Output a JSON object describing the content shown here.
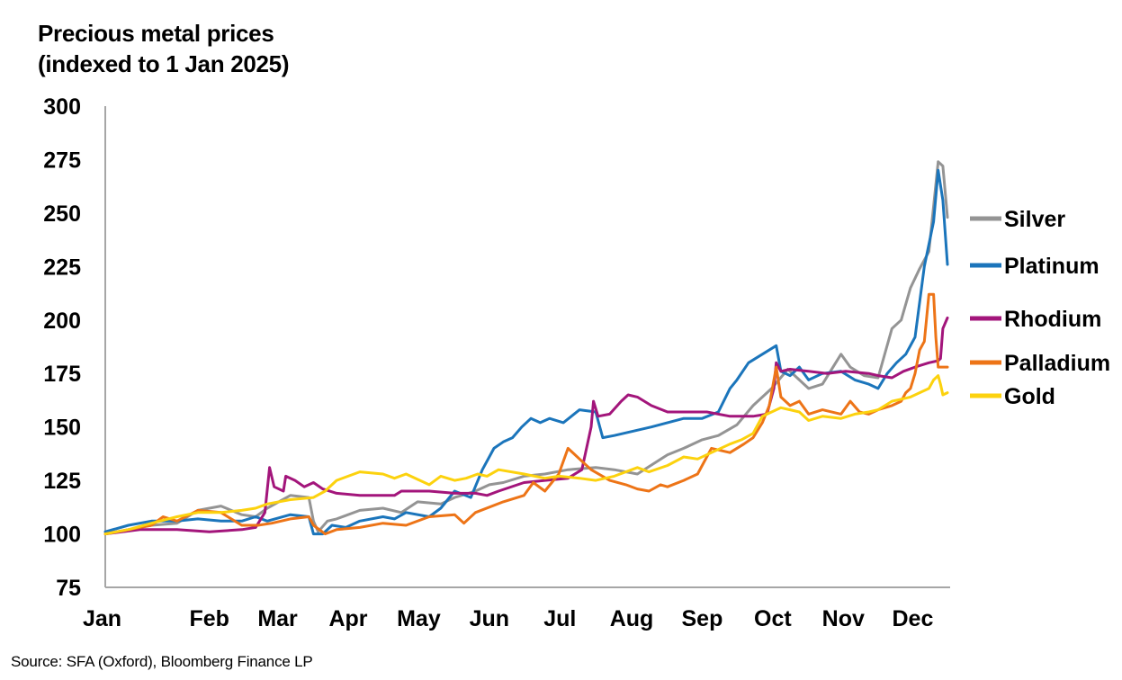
{
  "chart_data": {
    "type": "line",
    "title": "Precious metal prices",
    "subtitle": "(indexed to 1 Jan 2025)",
    "source": "Source: SFA (Oxford), Bloomberg Finance LP",
    "xlabel": "",
    "ylabel": "",
    "ylim": [
      75,
      300
    ],
    "yticks": [
      75,
      100,
      125,
      150,
      175,
      200,
      225,
      250,
      275,
      300
    ],
    "xlim": [
      0,
      364
    ],
    "x_ticks": [
      {
        "label": "Jan",
        "day": 0
      },
      {
        "label": "Feb",
        "day": 31
      },
      {
        "label": "Mar",
        "day": 59
      },
      {
        "label": "Apr",
        "day": 90
      },
      {
        "label": "May",
        "day": 120
      },
      {
        "label": "Jun",
        "day": 151
      },
      {
        "label": "Jul",
        "day": 181
      },
      {
        "label": "Aug",
        "day": 212
      },
      {
        "label": "Sep",
        "day": 243
      },
      {
        "label": "Oct",
        "day": 273
      },
      {
        "label": "Nov",
        "day": 304
      },
      {
        "label": "Dec",
        "day": 334
      }
    ],
    "grid": false,
    "legend": "right",
    "series": [
      {
        "name": "Silver",
        "color": "#949494",
        "points": [
          [
            0,
            100
          ],
          [
            10,
            102
          ],
          [
            20,
            104
          ],
          [
            31,
            105
          ],
          [
            40,
            111
          ],
          [
            50,
            113
          ],
          [
            59,
            109
          ],
          [
            65,
            108
          ],
          [
            70,
            112
          ],
          [
            80,
            118
          ],
          [
            88,
            117
          ],
          [
            90,
            106
          ],
          [
            92,
            101
          ],
          [
            96,
            106
          ],
          [
            100,
            107
          ],
          [
            110,
            111
          ],
          [
            120,
            112
          ],
          [
            128,
            110
          ],
          [
            135,
            115
          ],
          [
            145,
            114
          ],
          [
            151,
            117
          ],
          [
            160,
            120
          ],
          [
            166,
            123
          ],
          [
            172,
            124
          ],
          [
            181,
            127
          ],
          [
            190,
            128
          ],
          [
            200,
            130
          ],
          [
            212,
            131
          ],
          [
            220,
            130
          ],
          [
            230,
            128
          ],
          [
            243,
            137
          ],
          [
            250,
            140
          ],
          [
            258,
            144
          ],
          [
            265,
            146
          ],
          [
            273,
            151
          ],
          [
            280,
            160
          ],
          [
            288,
            168
          ],
          [
            295,
            177
          ],
          [
            304,
            168
          ],
          [
            310,
            170
          ],
          [
            318,
            184
          ],
          [
            322,
            178
          ],
          [
            328,
            174
          ],
          [
            334,
            173
          ],
          [
            340,
            196
          ],
          [
            344,
            200
          ],
          [
            348,
            215
          ],
          [
            352,
            224
          ],
          [
            356,
            232
          ],
          [
            360,
            274
          ],
          [
            362,
            272
          ],
          [
            364,
            248
          ]
        ]
      },
      {
        "name": "Platinum",
        "color": "#1b75bb",
        "points": [
          [
            0,
            101
          ],
          [
            10,
            104
          ],
          [
            20,
            106
          ],
          [
            31,
            106
          ],
          [
            40,
            107
          ],
          [
            50,
            106
          ],
          [
            59,
            106
          ],
          [
            65,
            108
          ],
          [
            70,
            106
          ],
          [
            80,
            109
          ],
          [
            88,
            108
          ],
          [
            90,
            100
          ],
          [
            94,
            100
          ],
          [
            98,
            104
          ],
          [
            104,
            103
          ],
          [
            110,
            106
          ],
          [
            120,
            108
          ],
          [
            125,
            107
          ],
          [
            130,
            110
          ],
          [
            140,
            108
          ],
          [
            145,
            112
          ],
          [
            151,
            120
          ],
          [
            158,
            117
          ],
          [
            163,
            130
          ],
          [
            168,
            140
          ],
          [
            172,
            143
          ],
          [
            176,
            145
          ],
          [
            180,
            150
          ],
          [
            184,
            154
          ],
          [
            188,
            152
          ],
          [
            192,
            154
          ],
          [
            198,
            152
          ],
          [
            205,
            158
          ],
          [
            212,
            157
          ],
          [
            215,
            145
          ],
          [
            220,
            146
          ],
          [
            228,
            148
          ],
          [
            236,
            150
          ],
          [
            243,
            152
          ],
          [
            250,
            154
          ],
          [
            258,
            154
          ],
          [
            265,
            157
          ],
          [
            270,
            168
          ],
          [
            273,
            172
          ],
          [
            278,
            180
          ],
          [
            284,
            184
          ],
          [
            290,
            188
          ],
          [
            292,
            176
          ],
          [
            296,
            174
          ],
          [
            300,
            178
          ],
          [
            304,
            172
          ],
          [
            310,
            175
          ],
          [
            318,
            176
          ],
          [
            324,
            172
          ],
          [
            330,
            170
          ],
          [
            334,
            168
          ],
          [
            338,
            175
          ],
          [
            342,
            180
          ],
          [
            346,
            184
          ],
          [
            350,
            192
          ],
          [
            354,
            225
          ],
          [
            358,
            246
          ],
          [
            360,
            270
          ],
          [
            362,
            256
          ],
          [
            364,
            226
          ]
        ]
      },
      {
        "name": "Rhodium",
        "color": "#a3157b",
        "points": [
          [
            0,
            100
          ],
          [
            15,
            102
          ],
          [
            31,
            102
          ],
          [
            45,
            101
          ],
          [
            59,
            102
          ],
          [
            65,
            103
          ],
          [
            69,
            110
          ],
          [
            71,
            131
          ],
          [
            73,
            122
          ],
          [
            77,
            120
          ],
          [
            78,
            127
          ],
          [
            82,
            125
          ],
          [
            86,
            122
          ],
          [
            90,
            124
          ],
          [
            94,
            121
          ],
          [
            100,
            119
          ],
          [
            110,
            118
          ],
          [
            120,
            118
          ],
          [
            125,
            118
          ],
          [
            128,
            120
          ],
          [
            133,
            120
          ],
          [
            140,
            120
          ],
          [
            151,
            119
          ],
          [
            160,
            119
          ],
          [
            165,
            118
          ],
          [
            170,
            120
          ],
          [
            181,
            124
          ],
          [
            190,
            125
          ],
          [
            200,
            126
          ],
          [
            206,
            130
          ],
          [
            210,
            150
          ],
          [
            211,
            162
          ],
          [
            213,
            155
          ],
          [
            218,
            156
          ],
          [
            223,
            162
          ],
          [
            226,
            165
          ],
          [
            230,
            164
          ],
          [
            236,
            160
          ],
          [
            243,
            157
          ],
          [
            250,
            157
          ],
          [
            260,
            157
          ],
          [
            270,
            155
          ],
          [
            280,
            155
          ],
          [
            286,
            156
          ],
          [
            289,
            168
          ],
          [
            290,
            180
          ],
          [
            292,
            176
          ],
          [
            296,
            177
          ],
          [
            304,
            176
          ],
          [
            312,
            175
          ],
          [
            320,
            176
          ],
          [
            330,
            175
          ],
          [
            334,
            174
          ],
          [
            340,
            173
          ],
          [
            345,
            176
          ],
          [
            350,
            178
          ],
          [
            356,
            180
          ],
          [
            360,
            181
          ],
          [
            361,
            182
          ],
          [
            362,
            196
          ],
          [
            364,
            201
          ]
        ]
      },
      {
        "name": "Palladium",
        "color": "#ed7417",
        "points": [
          [
            0,
            100
          ],
          [
            10,
            102
          ],
          [
            20,
            104
          ],
          [
            25,
            108
          ],
          [
            31,
            106
          ],
          [
            40,
            111
          ],
          [
            50,
            110
          ],
          [
            59,
            104
          ],
          [
            66,
            104
          ],
          [
            72,
            105
          ],
          [
            80,
            107
          ],
          [
            88,
            108
          ],
          [
            90,
            104
          ],
          [
            95,
            100
          ],
          [
            100,
            102
          ],
          [
            110,
            103
          ],
          [
            120,
            105
          ],
          [
            130,
            104
          ],
          [
            140,
            108
          ],
          [
            151,
            109
          ],
          [
            155,
            105
          ],
          [
            160,
            110
          ],
          [
            172,
            115
          ],
          [
            181,
            118
          ],
          [
            185,
            124
          ],
          [
            190,
            120
          ],
          [
            196,
            128
          ],
          [
            200,
            140
          ],
          [
            205,
            135
          ],
          [
            210,
            130
          ],
          [
            218,
            125
          ],
          [
            225,
            123
          ],
          [
            230,
            121
          ],
          [
            235,
            120
          ],
          [
            240,
            123
          ],
          [
            243,
            122
          ],
          [
            250,
            125
          ],
          [
            256,
            128
          ],
          [
            262,
            140
          ],
          [
            270,
            138
          ],
          [
            276,
            142
          ],
          [
            280,
            145
          ],
          [
            284,
            152
          ],
          [
            287,
            160
          ],
          [
            290,
            178
          ],
          [
            292,
            164
          ],
          [
            296,
            160
          ],
          [
            300,
            162
          ],
          [
            304,
            156
          ],
          [
            310,
            158
          ],
          [
            318,
            156
          ],
          [
            322,
            162
          ],
          [
            326,
            157
          ],
          [
            330,
            156
          ],
          [
            334,
            158
          ],
          [
            340,
            160
          ],
          [
            344,
            162
          ],
          [
            346,
            166
          ],
          [
            348,
            168
          ],
          [
            350,
            175
          ],
          [
            352,
            186
          ],
          [
            354,
            190
          ],
          [
            356,
            212
          ],
          [
            358,
            212
          ],
          [
            359,
            192
          ],
          [
            360,
            178
          ],
          [
            364,
            178
          ]
        ]
      },
      {
        "name": "Gold",
        "color": "#fcd20e",
        "points": [
          [
            0,
            100
          ],
          [
            10,
            102
          ],
          [
            20,
            105
          ],
          [
            31,
            108
          ],
          [
            40,
            110
          ],
          [
            50,
            110
          ],
          [
            59,
            111
          ],
          [
            65,
            112
          ],
          [
            70,
            114
          ],
          [
            80,
            116
          ],
          [
            90,
            117
          ],
          [
            95,
            120
          ],
          [
            100,
            125
          ],
          [
            110,
            129
          ],
          [
            120,
            128
          ],
          [
            125,
            126
          ],
          [
            130,
            128
          ],
          [
            140,
            123
          ],
          [
            145,
            127
          ],
          [
            151,
            125
          ],
          [
            156,
            126
          ],
          [
            161,
            128
          ],
          [
            165,
            127
          ],
          [
            170,
            130
          ],
          [
            181,
            128
          ],
          [
            190,
            126
          ],
          [
            196,
            127
          ],
          [
            205,
            126
          ],
          [
            212,
            125
          ],
          [
            220,
            127
          ],
          [
            230,
            131
          ],
          [
            235,
            129
          ],
          [
            243,
            132
          ],
          [
            250,
            136
          ],
          [
            256,
            135
          ],
          [
            262,
            138
          ],
          [
            270,
            142
          ],
          [
            275,
            144
          ],
          [
            280,
            147
          ],
          [
            284,
            155
          ],
          [
            288,
            157
          ],
          [
            292,
            159
          ],
          [
            296,
            158
          ],
          [
            300,
            157
          ],
          [
            304,
            153
          ],
          [
            310,
            155
          ],
          [
            318,
            154
          ],
          [
            324,
            156
          ],
          [
            330,
            157
          ],
          [
            334,
            158
          ],
          [
            340,
            162
          ],
          [
            344,
            163
          ],
          [
            348,
            164
          ],
          [
            352,
            166
          ],
          [
            356,
            168
          ],
          [
            358,
            172
          ],
          [
            360,
            174
          ],
          [
            361,
            170
          ],
          [
            362,
            165
          ],
          [
            364,
            166
          ]
        ]
      }
    ]
  }
}
